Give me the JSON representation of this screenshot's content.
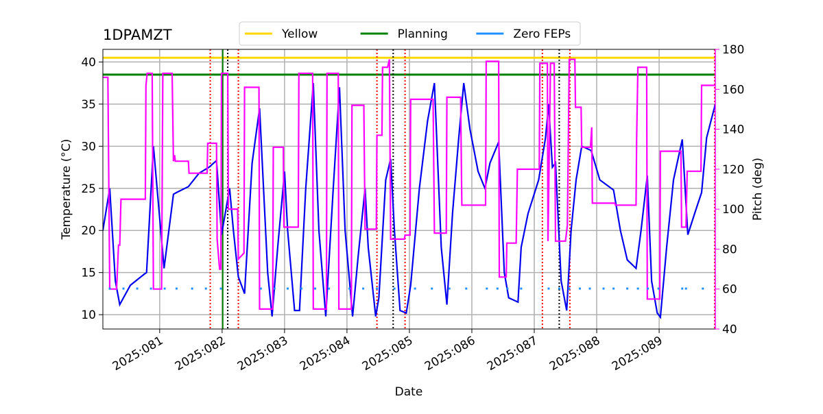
{
  "chart_data": {
    "type": "line",
    "title": "1DPAMZT",
    "xlabel": "Date",
    "ylabel": "Temperature (°C)",
    "y2label": "Pitch (deg)",
    "y2color": "#ff00ff",
    "grid": true,
    "legend": "upper center",
    "xlim": [
      80.09,
      89.9
    ],
    "xticks": [
      {
        "value": 81,
        "label": "2025:081"
      },
      {
        "value": 82,
        "label": "2025:082"
      },
      {
        "value": 83,
        "label": "2025:083"
      },
      {
        "value": 84,
        "label": "2025:084"
      },
      {
        "value": 85,
        "label": "2025:085"
      },
      {
        "value": 86,
        "label": "2025:086"
      },
      {
        "value": 87,
        "label": "2025:087"
      },
      {
        "value": 88,
        "label": "2025:088"
      },
      {
        "value": 89,
        "label": "2025:089"
      }
    ],
    "ylim": [
      8.3,
      41.5
    ],
    "yticks": [
      10,
      15,
      20,
      25,
      30,
      35,
      40
    ],
    "y2lim": [
      40,
      180
    ],
    "y2ticks": [
      40,
      60,
      80,
      100,
      120,
      140,
      160,
      180
    ],
    "hlines": [
      {
        "name": "Yellow",
        "color": "#ffd700",
        "value": 40.5
      },
      {
        "name": "Planning",
        "color": "#008000",
        "value": 38.5
      }
    ],
    "series": [
      {
        "color": "#0000ee",
        "style": "line",
        "x": [
          80.09,
          80.2,
          80.29,
          80.36,
          80.42,
          80.53,
          80.75,
          80.79,
          80.9,
          81.07,
          81.22,
          81.27,
          81.46,
          81.63,
          81.79,
          81.91,
          81.99,
          82.12,
          82.18,
          82.26,
          82.36,
          82.48,
          82.6,
          82.73,
          82.8,
          82.89,
          83.0,
          83.05,
          83.16,
          83.24,
          83.34,
          83.46,
          83.55,
          83.66,
          83.78,
          83.88,
          83.97,
          84.09,
          84.18,
          84.29,
          84.34,
          84.46,
          84.51,
          84.62,
          84.7,
          84.76,
          84.85,
          84.95,
          85.02,
          85.16,
          85.29,
          85.4,
          85.51,
          85.6,
          85.69,
          85.79,
          85.87,
          85.97,
          86.1,
          86.21,
          86.29,
          86.43,
          86.52,
          86.59,
          86.74,
          86.79,
          86.9,
          87.07,
          87.18,
          87.23,
          87.29,
          87.34,
          87.43,
          87.52,
          87.59,
          87.67,
          87.76,
          87.91,
          88.05,
          88.27,
          88.38,
          88.49,
          88.63,
          88.71,
          88.81,
          88.88,
          88.97,
          89.02,
          89.12,
          89.23,
          89.37,
          89.46,
          89.59,
          89.68,
          89.76,
          89.9
        ],
        "values": [
          20,
          25,
          14,
          11.2,
          12,
          13.5,
          14.8,
          15,
          30,
          15.5,
          24.3,
          24.5,
          25.2,
          26.8,
          27.5,
          28.3,
          19.5,
          25,
          20,
          14.5,
          12.5,
          28,
          34.5,
          15,
          9.8,
          18,
          27,
          20,
          10.5,
          10.5,
          25,
          37.5,
          20,
          9.8,
          25,
          37,
          20,
          9.8,
          17,
          25,
          18,
          9.8,
          12,
          26,
          28.5,
          20,
          10.5,
          10.2,
          13.5,
          25,
          33,
          37.5,
          18,
          11.2,
          22,
          31,
          37.5,
          32,
          27,
          25,
          28,
          30.5,
          15,
          12,
          11.5,
          18,
          22,
          26,
          31,
          35,
          27.5,
          28,
          14,
          10.5,
          20,
          26,
          30,
          29.5,
          26,
          24.8,
          20,
          16.5,
          15.5,
          20,
          26.5,
          14,
          10.2,
          9.7,
          18,
          26,
          30.8,
          19.5,
          22.5,
          24.5,
          31,
          35
        ]
      },
      {
        "color": "#ff00ff",
        "style": "line",
        "axis": "y2",
        "x": [
          80.09,
          80.17,
          80.2,
          80.31,
          80.34,
          80.36,
          80.38,
          80.77,
          80.78,
          80.8,
          80.88,
          80.9,
          81.03,
          81.05,
          81.2,
          81.22,
          81.24,
          81.25,
          81.46,
          81.47,
          81.76,
          81.77,
          81.91,
          81.92,
          81.96,
          81.98,
          81.99,
          82.09,
          82.1,
          82.25,
          82.26,
          82.35,
          82.36,
          82.59,
          82.6,
          82.81,
          82.82,
          82.98,
          82.99,
          83.22,
          83.23,
          83.45,
          83.46,
          83.67,
          83.68,
          83.86,
          83.87,
          84.07,
          84.08,
          84.27,
          84.29,
          84.47,
          84.48,
          84.56,
          84.57,
          84.65,
          84.68,
          84.7,
          84.92,
          84.93,
          85.01,
          85.02,
          85.38,
          85.4,
          85.59,
          85.6,
          85.82,
          85.84,
          86.22,
          86.23,
          86.43,
          86.44,
          86.55,
          86.56,
          86.71,
          86.73,
          87.08,
          87.09,
          87.21,
          87.22,
          87.26,
          87.32,
          87.34,
          87.5,
          87.53,
          87.56,
          87.65,
          87.66,
          87.75,
          87.76,
          87.9,
          87.92,
          87.93,
          88.29,
          88.3,
          88.63,
          88.64,
          88.66,
          88.8,
          88.81,
          89.01,
          89.02,
          89.35,
          89.36,
          89.43,
          89.45,
          89.67,
          89.68,
          89.9
        ],
        "values": [
          166,
          166,
          60,
          60,
          82,
          82,
          105,
          105,
          162,
          168,
          168,
          60,
          60,
          168,
          168,
          124,
          127,
          124,
          124,
          118,
          118,
          133,
          133,
          85,
          70,
          70,
          168,
          168,
          100,
          100,
          75,
          78,
          161,
          161,
          50,
          50,
          131,
          131,
          91,
          91,
          168,
          168,
          50,
          50,
          168,
          168,
          50,
          50,
          152,
          152,
          90,
          90,
          137,
          137,
          171,
          171,
          175,
          85,
          85,
          87,
          87,
          155,
          155,
          88,
          88,
          156,
          156,
          102,
          102,
          174,
          174,
          66,
          66,
          83,
          83,
          120,
          120,
          173,
          173,
          84,
          173,
          173,
          84,
          84,
          92,
          175,
          175,
          151,
          151,
          131,
          131,
          141,
          103,
          103,
          102,
          102,
          136,
          171,
          171,
          55,
          55,
          129,
          129,
          91,
          91,
          119,
          119,
          162,
          162
        ]
      },
      {
        "name": "Zero FEPs",
        "color": "#1e90ff",
        "style": "dots",
        "x": [
          80.2,
          80.42,
          80.64,
          80.86,
          81.08,
          81.27,
          81.52,
          81.74,
          81.98,
          82.62,
          82.84,
          83.05,
          83.27,
          83.49,
          83.71,
          84.04,
          84.26,
          84.48,
          84.76,
          85.09,
          85.36,
          85.64,
          85.91,
          86.24,
          86.41,
          86.57,
          86.79,
          87.23,
          87.4,
          87.56,
          87.73,
          87.89,
          88.11,
          88.27,
          88.49,
          88.66,
          88.82,
          88.99,
          89.37,
          89.43,
          89.7
        ],
        "values": [
          13.1,
          13.1,
          13.1,
          13.1,
          13.1,
          13.1,
          13.1,
          13.1,
          13.1,
          13.1,
          13.1,
          13.1,
          13.1,
          13.1,
          13.1,
          13.1,
          13.1,
          13.1,
          13.1,
          13.1,
          13.1,
          13.1,
          13.1,
          13.1,
          13.1,
          13.1,
          13.1,
          13.1,
          13.1,
          13.1,
          13.1,
          13.1,
          13.1,
          13.1,
          13.1,
          13.1,
          13.1,
          13.1,
          13.1,
          13.1,
          13.1
        ]
      }
    ],
    "vlines": [
      {
        "x": 82.01,
        "color": "#008000",
        "style": "solid"
      },
      {
        "x": 81.81,
        "color": "#ff0000",
        "style": "dotted"
      },
      {
        "x": 82.26,
        "color": "#ff0000",
        "style": "dotted"
      },
      {
        "x": 84.48,
        "color": "#ff0000",
        "style": "dotted"
      },
      {
        "x": 84.93,
        "color": "#ff0000",
        "style": "dotted"
      },
      {
        "x": 87.13,
        "color": "#ff0000",
        "style": "dotted"
      },
      {
        "x": 87.57,
        "color": "#ff0000",
        "style": "dotted"
      },
      {
        "x": 89.89,
        "color": "#ff0000",
        "style": "dotted"
      },
      {
        "x": 82.09,
        "color": "#000000",
        "style": "dotted"
      },
      {
        "x": 84.74,
        "color": "#000000",
        "style": "dotted"
      },
      {
        "x": 87.4,
        "color": "#000000",
        "style": "dotted"
      }
    ]
  }
}
